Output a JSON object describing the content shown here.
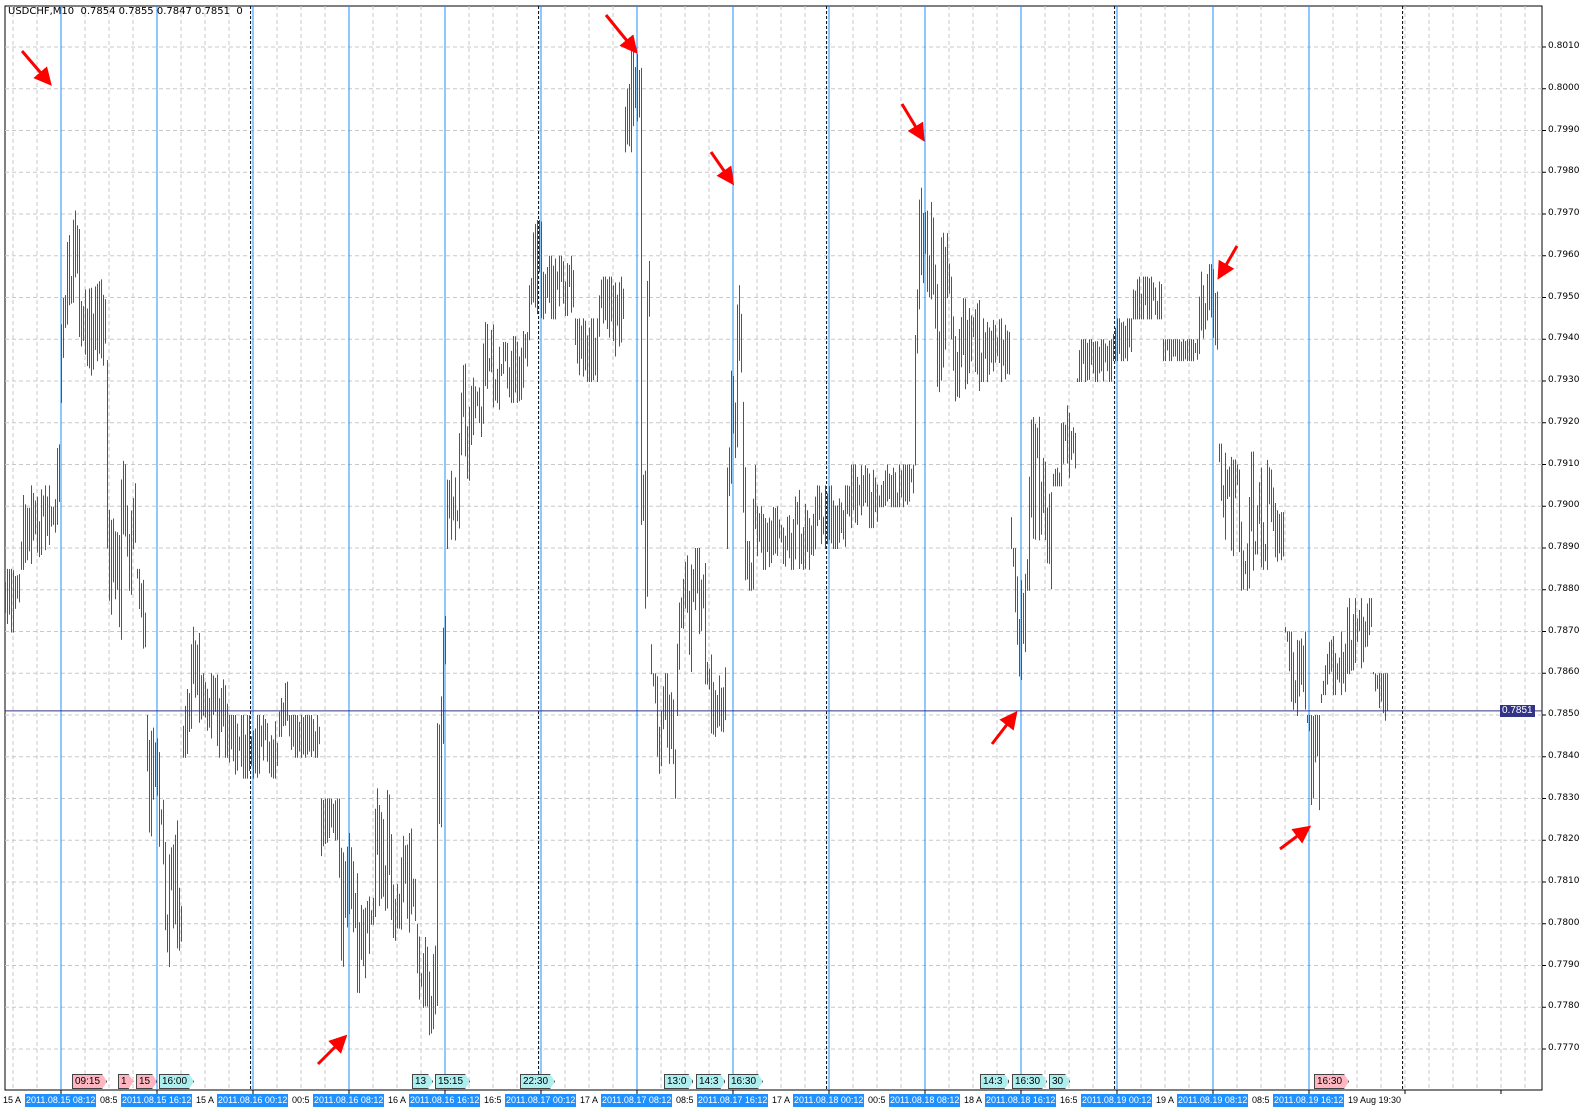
{
  "header": {
    "text": "USDCHF,M10  0.7854 0.7855 0.7847 0.7851  0"
  },
  "chart_data": {
    "type": "ohlc",
    "symbol": "USDCHF",
    "timeframe": "M10",
    "last_bar": {
      "open": 0.7854,
      "high": 0.7855,
      "low": 0.7847,
      "close": 0.7851
    },
    "current_price": "0.7851",
    "ylim": [
      0.776,
      0.8019
    ],
    "yticks": [
      "0.8010",
      "0.8000",
      "0.7990",
      "0.7980",
      "0.7970",
      "0.7960",
      "0.7950",
      "0.7940",
      "0.7930",
      "0.7920",
      "0.7910",
      "0.7900",
      "0.7890",
      "0.7880",
      "0.7870",
      "0.7860",
      "0.7850",
      "0.7840",
      "0.7830",
      "0.7820",
      "0.7810",
      "0.7800",
      "0.7790",
      "0.7780",
      "0.7770"
    ],
    "grid": true,
    "colors": {
      "bars": "#555555",
      "period_lines": "#1e90ff",
      "price_line": "#333388",
      "arrows": "#ff0000"
    },
    "segments": [
      {
        "t": "2011.08.15 03:30",
        "lo": 0.787,
        "hi": 0.7885
      },
      {
        "t": "2011.08.15 04:50",
        "lo": 0.7885,
        "hi": 0.7905
      },
      {
        "t": "2011.08.15 07:50",
        "lo": 0.788,
        "hi": 0.7935
      },
      {
        "t": "2011.08.15 08:10",
        "lo": 0.7925,
        "hi": 0.7995
      },
      {
        "t": "2011.08.15 09:00",
        "lo": 0.7935,
        "hi": 0.798
      },
      {
        "t": "2011.08.15 09:50",
        "lo": 0.793,
        "hi": 0.7955
      },
      {
        "t": "2011.08.15 12:00",
        "lo": 0.7865,
        "hi": 0.7935
      },
      {
        "t": "2011.08.15 13:20",
        "lo": 0.787,
        "hi": 0.7915
      },
      {
        "t": "2011.08.15 14:30",
        "lo": 0.786,
        "hi": 0.7885
      },
      {
        "t": "2011.08.15 15:20",
        "lo": 0.7815,
        "hi": 0.785
      },
      {
        "t": "2011.08.15 16:40",
        "lo": 0.7787,
        "hi": 0.783
      },
      {
        "t": "2011.08.15 18:20",
        "lo": 0.784,
        "hi": 0.788
      },
      {
        "t": "2011.08.15 20:00",
        "lo": 0.784,
        "hi": 0.786
      },
      {
        "t": "2011.08.15 22:10",
        "lo": 0.7835,
        "hi": 0.785
      },
      {
        "t": "2011.08.16 00:20",
        "lo": 0.7835,
        "hi": 0.785
      },
      {
        "t": "2011.08.16 02:20",
        "lo": 0.7845,
        "hi": 0.7858
      },
      {
        "t": "2011.08.16 03:10",
        "lo": 0.784,
        "hi": 0.785
      },
      {
        "t": "2011.08.16 05:50",
        "lo": 0.781,
        "hi": 0.783
      },
      {
        "t": "2011.08.16 07:30",
        "lo": 0.7775,
        "hi": 0.7825
      },
      {
        "t": "2011.08.16 08:40",
        "lo": 0.778,
        "hi": 0.782
      },
      {
        "t": "2011.08.16 10:00",
        "lo": 0.78,
        "hi": 0.7845
      },
      {
        "t": "2011.08.16 11:40",
        "lo": 0.7795,
        "hi": 0.7825
      },
      {
        "t": "2011.08.16 13:50",
        "lo": 0.777,
        "hi": 0.78
      },
      {
        "t": "2011.08.16 15:30",
        "lo": 0.778,
        "hi": 0.788
      },
      {
        "t": "2011.08.16 16:20",
        "lo": 0.789,
        "hi": 0.7935
      },
      {
        "t": "2011.08.16 17:40",
        "lo": 0.79,
        "hi": 0.7935
      },
      {
        "t": "2011.08.16 19:20",
        "lo": 0.792,
        "hi": 0.7945
      },
      {
        "t": "2011.08.16 21:30",
        "lo": 0.7925,
        "hi": 0.7945
      },
      {
        "t": "2011.08.16 23:10",
        "lo": 0.794,
        "hi": 0.7975
      },
      {
        "t": "2011.08.17 00:20",
        "lo": 0.7945,
        "hi": 0.796
      },
      {
        "t": "2011.08.17 03:00",
        "lo": 0.793,
        "hi": 0.7945
      },
      {
        "t": "2011.08.17 05:00",
        "lo": 0.7935,
        "hi": 0.7955
      },
      {
        "t": "2011.08.17 07:10",
        "lo": 0.7985,
        "hi": 0.8015
      },
      {
        "t": "2011.08.17 08:30",
        "lo": 0.783,
        "hi": 0.8005
      },
      {
        "t": "2011.08.17 09:20",
        "lo": 0.7825,
        "hi": 0.786
      },
      {
        "t": "2011.08.17 11:30",
        "lo": 0.785,
        "hi": 0.789
      },
      {
        "t": "2011.08.17 14:00",
        "lo": 0.7845,
        "hi": 0.787
      },
      {
        "t": "2011.08.17 15:40",
        "lo": 0.789,
        "hi": 0.7972
      },
      {
        "t": "2011.08.17 17:00",
        "lo": 0.788,
        "hi": 0.7925
      },
      {
        "t": "2011.08.17 18:10",
        "lo": 0.7885,
        "hi": 0.79
      },
      {
        "t": "2011.08.17 20:40",
        "lo": 0.7885,
        "hi": 0.7905
      },
      {
        "t": "2011.08.17 23:20",
        "lo": 0.789,
        "hi": 0.7905
      },
      {
        "t": "2011.08.18 01:50",
        "lo": 0.7895,
        "hi": 0.791
      },
      {
        "t": "2011.08.18 04:20",
        "lo": 0.79,
        "hi": 0.791
      },
      {
        "t": "2011.08.18 07:20",
        "lo": 0.791,
        "hi": 0.7988
      },
      {
        "t": "2011.08.18 08:10",
        "lo": 0.7925,
        "hi": 0.7975
      },
      {
        "t": "2011.08.18 10:20",
        "lo": 0.7925,
        "hi": 0.7955
      },
      {
        "t": "2011.08.18 12:50",
        "lo": 0.793,
        "hi": 0.7945
      },
      {
        "t": "2011.08.18 15:20",
        "lo": 0.7855,
        "hi": 0.789
      },
      {
        "t": "2011.08.18 16:40",
        "lo": 0.788,
        "hi": 0.793
      },
      {
        "t": "2011.08.18 18:50",
        "lo": 0.7905,
        "hi": 0.7925
      },
      {
        "t": "2011.08.18 20:50",
        "lo": 0.793,
        "hi": 0.794
      },
      {
        "t": "2011.08.18 23:50",
        "lo": 0.7935,
        "hi": 0.7945
      },
      {
        "t": "2011.08.19 01:30",
        "lo": 0.7945,
        "hi": 0.7955
      },
      {
        "t": "2011.08.19 04:00",
        "lo": 0.7935,
        "hi": 0.794
      },
      {
        "t": "2011.08.19 07:00",
        "lo": 0.7935,
        "hi": 0.7958
      },
      {
        "t": "2011.08.19 08:40",
        "lo": 0.788,
        "hi": 0.7915
      },
      {
        "t": "2011.08.19 11:40",
        "lo": 0.7885,
        "hi": 0.7915
      },
      {
        "t": "2011.08.19 14:10",
        "lo": 0.785,
        "hi": 0.787
      },
      {
        "t": "2011.08.19 16:00",
        "lo": 0.782,
        "hi": 0.785
      },
      {
        "t": "2011.08.19 17:10",
        "lo": 0.7855,
        "hi": 0.787
      },
      {
        "t": "2011.08.19 19:20",
        "lo": 0.786,
        "hi": 0.7878
      },
      {
        "t": "2011.08.19 21:30",
        "lo": 0.7848,
        "hi": 0.786
      },
      {
        "t": "2011.08.19 22:50",
        "lo": 0.7847,
        "hi": 0.7855
      }
    ],
    "period_lines": [
      "2011.08.15 08:12",
      "2011.08.15 16:12",
      "2011.08.16 00:12",
      "2011.08.16 08:12",
      "2011.08.16 16:12",
      "2011.08.17 00:12",
      "2011.08.17 08:12",
      "2011.08.17 16:12",
      "2011.08.18 00:12",
      "2011.08.18 08:12",
      "2011.08.18 16:12",
      "2011.08.19 00:12",
      "2011.08.19 08:12",
      "2011.08.19 16:12"
    ],
    "time_axis": [
      {
        "text": "15 A",
        "blue": false
      },
      {
        "text": "2011.08.15 08:12",
        "blue": true
      },
      {
        "text": "08:5",
        "blue": false
      },
      {
        "text": "2011.08.15 16:12",
        "blue": true
      },
      {
        "text": "15 A",
        "blue": false
      },
      {
        "text": "2011.08.16 00:12",
        "blue": true
      },
      {
        "text": "00:5",
        "blue": false
      },
      {
        "text": "2011.08.16 08:12",
        "blue": true
      },
      {
        "text": "16 A",
        "blue": false
      },
      {
        "text": "2011.08.16 16:12",
        "blue": true
      },
      {
        "text": "16:5",
        "blue": false
      },
      {
        "text": "2011.08.17 00:12",
        "blue": true
      },
      {
        "text": "17 A",
        "blue": false
      },
      {
        "text": "2011.08.17 08:12",
        "blue": true
      },
      {
        "text": "08:5",
        "blue": false
      },
      {
        "text": "2011.08.17 16:12",
        "blue": true
      },
      {
        "text": "17 A",
        "blue": false
      },
      {
        "text": "2011.08.18 00:12",
        "blue": true
      },
      {
        "text": "00:5",
        "blue": false
      },
      {
        "text": "2011.08.18 08:12",
        "blue": true
      },
      {
        "text": "18 A",
        "blue": false
      },
      {
        "text": "2011.08.18 16:12",
        "blue": true
      },
      {
        "text": "16:5",
        "blue": false
      },
      {
        "text": "2011.08.19 00:12",
        "blue": true
      },
      {
        "text": "19 A",
        "blue": false
      },
      {
        "text": "2011.08.19 08:12",
        "blue": true
      },
      {
        "text": "08:5",
        "blue": false
      },
      {
        "text": "2011.08.19 16:12",
        "blue": true
      },
      {
        "text": "19 Aug 19:30",
        "blue": false
      }
    ],
    "event_labels": [
      {
        "text": "09:15",
        "color": "pink"
      },
      {
        "text": "1",
        "color": "pink"
      },
      {
        "text": "15",
        "color": "pink"
      },
      {
        "text": "16:00",
        "color": "cyan"
      },
      {
        "text": "13",
        "color": "cyan"
      },
      {
        "text": "15:15",
        "color": "cyan"
      },
      {
        "text": "22:30",
        "color": "cyan"
      },
      {
        "text": "13:0",
        "color": "cyan"
      },
      {
        "text": "14:3",
        "color": "cyan"
      },
      {
        "text": "16:30",
        "color": "cyan"
      },
      {
        "text": "14:3",
        "color": "cyan"
      },
      {
        "text": "16:30",
        "color": "cyan"
      },
      {
        "text": "30",
        "color": "cyan"
      },
      {
        "text": "16:30",
        "color": "pink"
      }
    ]
  }
}
